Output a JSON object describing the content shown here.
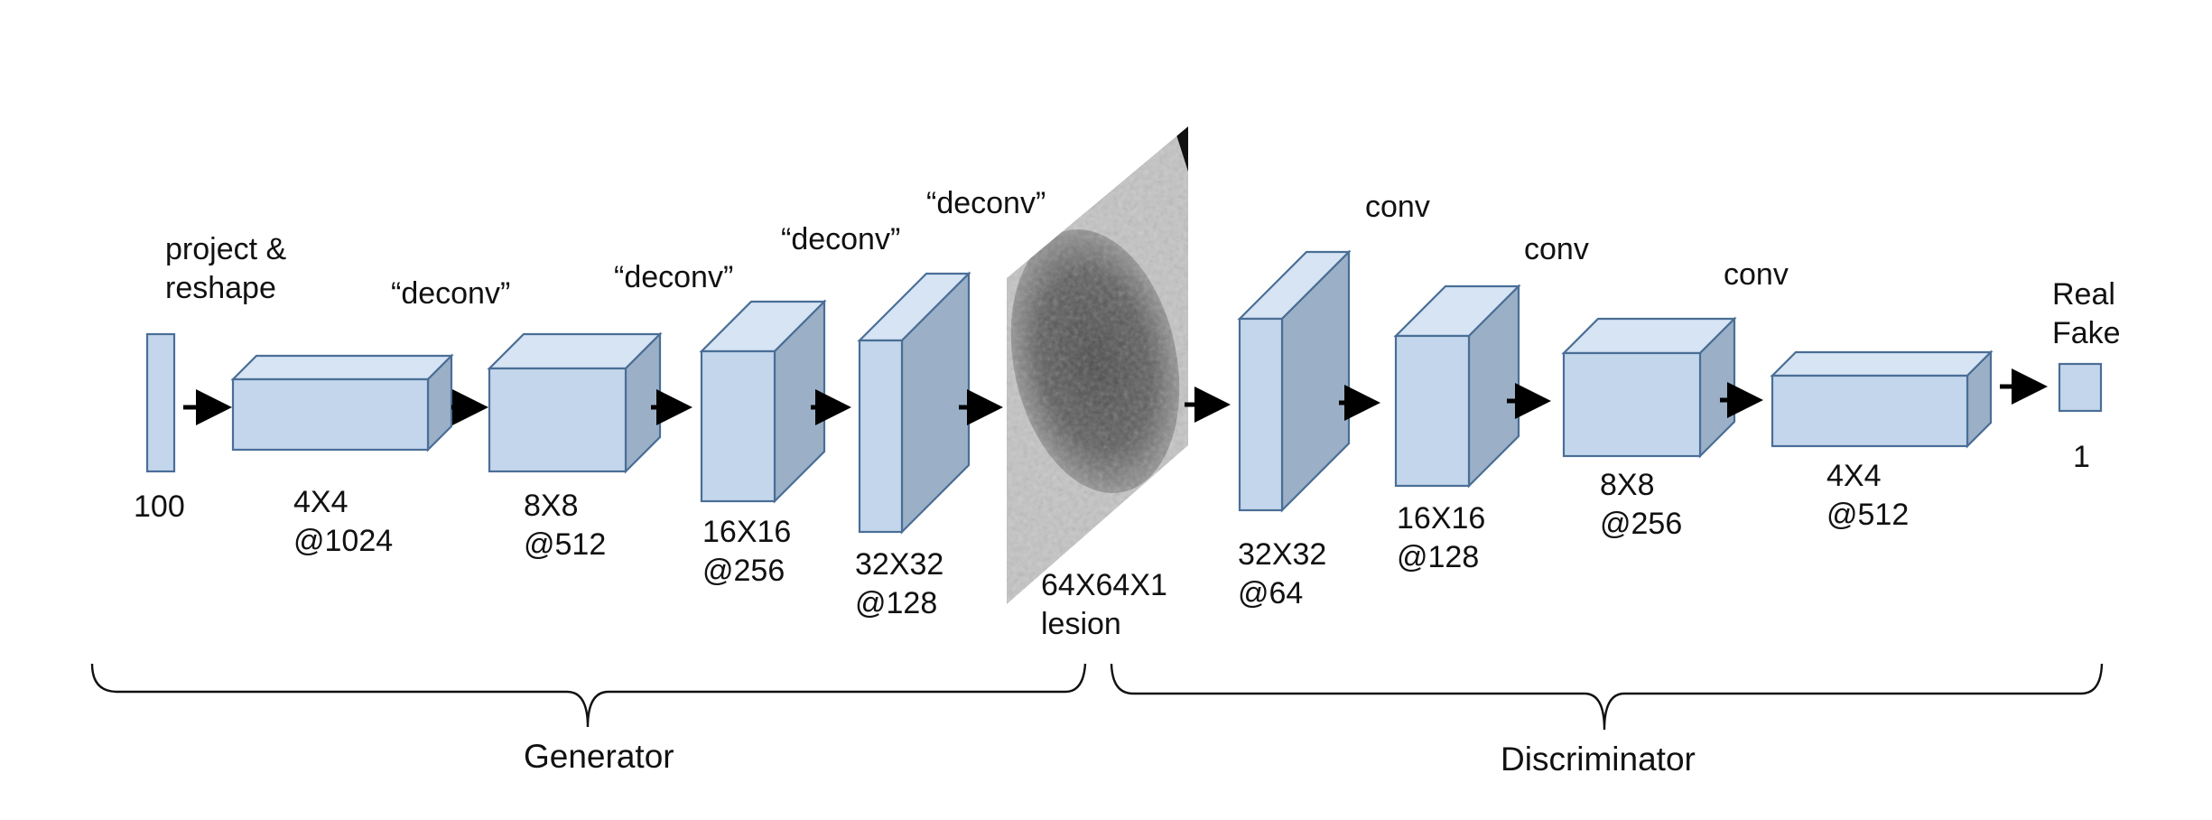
{
  "colors": {
    "block_front": "#c3d6ec",
    "block_top": "#d6e4f3",
    "block_side": "#9bb0c6",
    "block_stroke": "#4a6e96"
  },
  "generator": {
    "label": "Generator",
    "input_size": "100",
    "project_label_1": "project &",
    "project_label_2": "reshape",
    "layers": [
      {
        "op": "“deconv”",
        "dim": "4X4",
        "depth": "@1024"
      },
      {
        "op": "“deconv”",
        "dim": "8X8",
        "depth": "@512"
      },
      {
        "op": "“deconv”",
        "dim": "16X16",
        "depth": "@256"
      },
      {
        "op": "“deconv”",
        "dim": "32X32",
        "depth": "@128"
      }
    ],
    "output_label_1": "64X64X1",
    "output_label_2": "lesion"
  },
  "discriminator": {
    "label": "Discriminator",
    "layers": [
      {
        "op": "conv",
        "dim": "32X32",
        "depth": "@64"
      },
      {
        "op": "conv",
        "dim": "16X16",
        "depth": "@128"
      },
      {
        "op": "conv",
        "dim": "8X8",
        "depth": "@256"
      },
      {
        "op": "",
        "dim": "4X4",
        "depth": "@512"
      }
    ],
    "output_top_1": "Real",
    "output_top_2": "Fake",
    "output_size": "1"
  }
}
